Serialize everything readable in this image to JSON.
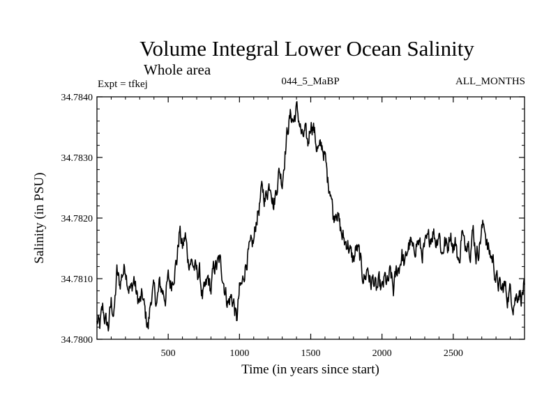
{
  "chart_data": {
    "type": "line",
    "title": "Volume Integral Lower Ocean Salinity",
    "subtitle": "Whole area",
    "annotations": {
      "left": "Expt = tfkej",
      "center": "044_5_MaBP",
      "right": "ALL_MONTHS"
    },
    "xlabel": "Time (in years since start)",
    "ylabel": "Salinity (in PSU)",
    "xlim": [
      0,
      3000
    ],
    "ylim": [
      34.78,
      34.784
    ],
    "x_ticks": [
      500,
      1000,
      1500,
      2000,
      2500
    ],
    "y_ticks": [
      "34.7800",
      "34.7810",
      "34.7820",
      "34.7830",
      "34.7840"
    ],
    "grid": false,
    "legend": "none",
    "series": [
      {
        "color": "#000000",
        "x": [
          0,
          20,
          40,
          60,
          80,
          100,
          120,
          140,
          160,
          180,
          200,
          220,
          240,
          260,
          280,
          300,
          320,
          340,
          360,
          380,
          400,
          420,
          440,
          460,
          480,
          500,
          520,
          540,
          560,
          580,
          600,
          620,
          640,
          660,
          680,
          700,
          720,
          740,
          760,
          780,
          800,
          820,
          840,
          860,
          880,
          900,
          920,
          940,
          960,
          980,
          1000,
          1020,
          1040,
          1060,
          1080,
          1100,
          1120,
          1140,
          1160,
          1180,
          1200,
          1220,
          1240,
          1260,
          1280,
          1300,
          1320,
          1340,
          1360,
          1380,
          1400,
          1420,
          1440,
          1460,
          1480,
          1500,
          1520,
          1540,
          1560,
          1580,
          1600,
          1620,
          1640,
          1660,
          1680,
          1700,
          1720,
          1740,
          1760,
          1780,
          1800,
          1820,
          1840,
          1860,
          1880,
          1900,
          1920,
          1940,
          1960,
          1980,
          2000,
          2020,
          2040,
          2060,
          2080,
          2100,
          2120,
          2140,
          2160,
          2180,
          2200,
          2220,
          2240,
          2260,
          2280,
          2300,
          2320,
          2340,
          2360,
          2380,
          2400,
          2420,
          2440,
          2460,
          2480,
          2500,
          2520,
          2540,
          2560,
          2580,
          2600,
          2620,
          2640,
          2660,
          2680,
          2700,
          2720,
          2740,
          2760,
          2780,
          2800,
          2820,
          2840,
          2860,
          2880,
          2900,
          2920,
          2940,
          2960,
          2980,
          3000
        ],
        "y": [
          34.7803,
          34.7802,
          34.7805,
          34.7803,
          34.7802,
          34.7806,
          34.7804,
          34.7811,
          34.7809,
          34.7811,
          34.7812,
          34.7809,
          34.7808,
          34.781,
          34.7807,
          34.7806,
          34.7807,
          34.7804,
          34.7802,
          34.7807,
          34.7808,
          34.7806,
          34.7809,
          34.7808,
          34.7807,
          34.781,
          34.7809,
          34.7811,
          34.7813,
          34.7818,
          34.7815,
          34.7817,
          34.7813,
          34.7813,
          34.7812,
          34.7811,
          34.7811,
          34.7807,
          34.7808,
          34.781,
          34.7808,
          34.7812,
          34.7812,
          34.7813,
          34.7811,
          34.7808,
          34.7806,
          34.7807,
          34.7806,
          34.7803,
          34.7808,
          34.7809,
          34.7812,
          34.7814,
          34.7815,
          34.7816,
          34.782,
          34.7822,
          34.7825,
          34.7823,
          34.7825,
          34.7826,
          34.7822,
          34.7825,
          34.7828,
          34.7826,
          34.7831,
          34.7835,
          34.7837,
          34.7836,
          34.7838,
          34.7836,
          34.7833,
          34.7834,
          34.7832,
          34.7836,
          34.7835,
          34.7832,
          34.7831,
          34.7832,
          34.783,
          34.7826,
          34.7825,
          34.782,
          34.7822,
          34.7819,
          34.7817,
          34.7816,
          34.7816,
          34.7814,
          34.7813,
          34.7815,
          34.7814,
          34.7811,
          34.781,
          34.7812,
          34.7809,
          34.781,
          34.7808,
          34.7809,
          34.7808,
          34.781,
          34.7809,
          34.7811,
          34.7808,
          34.7811,
          34.7812,
          34.7814,
          34.7812,
          34.7815,
          34.7816,
          34.7814,
          34.7816,
          34.7816,
          34.7814,
          34.7815,
          34.7816,
          34.7817,
          34.7818,
          34.7816,
          34.7818,
          34.7814,
          34.7816,
          34.7815,
          34.7818,
          34.7815,
          34.7816,
          34.7812,
          34.7818,
          34.7815,
          34.7817,
          34.7815,
          34.7818,
          34.7814,
          34.7815,
          34.7818,
          34.7819,
          34.7815,
          34.7814,
          34.7813,
          34.781,
          34.7809,
          34.7808,
          34.7809,
          34.7807,
          34.7808,
          34.7806,
          34.7807,
          34.7808,
          34.7807,
          34.7809
        ]
      }
    ]
  }
}
